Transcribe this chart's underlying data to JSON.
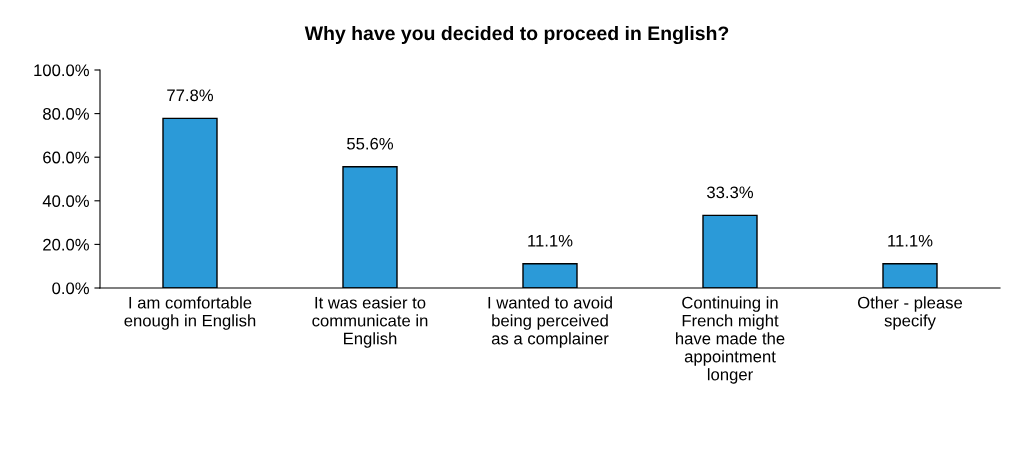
{
  "chart_data": {
    "type": "bar",
    "title": "Why have you decided to proceed in English?",
    "categories": [
      "I am comfortable\nenough in English",
      "It was easier to\ncommunicate in\nEnglish",
      "I wanted to avoid\nbeing perceived\nas a complainer",
      "Continuing in\nFrench might\nhave made the\nappointment\nlonger",
      "Other - please\nspecify"
    ],
    "values": [
      77.8,
      55.6,
      11.1,
      33.3,
      11.1
    ],
    "value_labels": [
      "77.8%",
      "55.6%",
      "11.1%",
      "33.3%",
      "11.1%"
    ],
    "color": "#2b9ad8",
    "ylim": [
      0,
      100
    ],
    "yticks": [
      {
        "value": 0,
        "label": "0.0%"
      },
      {
        "value": 20,
        "label": "20.0%"
      },
      {
        "value": 40,
        "label": "40.0%"
      },
      {
        "value": 60,
        "label": "60.0%"
      },
      {
        "value": 80,
        "label": "80.0%"
      },
      {
        "value": 100,
        "label": "100.0%"
      }
    ],
    "grid": false,
    "legend": false
  }
}
